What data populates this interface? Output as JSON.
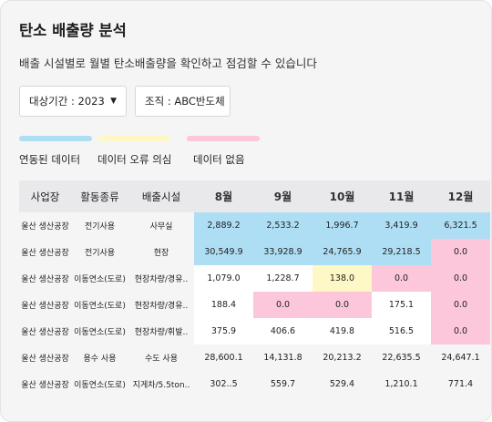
{
  "header": {
    "title": "탄소 배출량 분석",
    "subtitle": "배출 시설별로 월별 탄소배출량을 확인하고 점검할 수 있습니다"
  },
  "filters": {
    "period": "대상기간 : 2023",
    "org": "조직 : ABC반도체"
  },
  "legend": [
    {
      "label": "연동된 데이터",
      "color": "#aedef4"
    },
    {
      "label": "데이터 오류 의심",
      "color": "#fdf8c6"
    },
    {
      "label": "데이터 없음",
      "color": "#fcc7da"
    }
  ],
  "table": {
    "headers": [
      "사업장",
      "활동종류",
      "배출시설",
      "8월",
      "9월",
      "10월",
      "11월",
      "12월"
    ],
    "rows": [
      {
        "site": "울산 생산공장",
        "activity": "전기사용",
        "facility": "사무실",
        "values": [
          "2,889.2",
          "2,533.2",
          "1,996.7",
          "3,419.9",
          "6,321.5"
        ],
        "status": [
          "linked",
          "linked",
          "linked",
          "linked",
          "linked"
        ]
      },
      {
        "site": "울산 생산공장",
        "activity": "전기사용",
        "facility": "현장",
        "values": [
          "30,549.9",
          "33,928.9",
          "24,765.9",
          "29,218.5",
          "0.0"
        ],
        "status": [
          "linked",
          "linked",
          "linked",
          "linked",
          "missing"
        ]
      },
      {
        "site": "울산 생산공장",
        "activity": "이동연소(도로)",
        "facility": "현장차량/경유..",
        "values": [
          "1,079.0",
          "1,228.7",
          "138.0",
          "0.0",
          "0.0"
        ],
        "status": [
          "normal",
          "normal",
          "error",
          "missing",
          "missing"
        ]
      },
      {
        "site": "울산 생산공장",
        "activity": "이동연소(도로)",
        "facility": "현장차량/경유..",
        "values": [
          "188.4",
          "0.0",
          "0.0",
          "175.1",
          "0.0"
        ],
        "status": [
          "normal",
          "missing",
          "missing",
          "normal",
          "missing"
        ]
      },
      {
        "site": "울산 생산공장",
        "activity": "이동연소(도로)",
        "facility": "현장차량/휘발..",
        "values": [
          "375.9",
          "406.6",
          "419.8",
          "516.5",
          "0.0"
        ],
        "status": [
          "normal",
          "normal",
          "normal",
          "normal",
          "missing"
        ]
      },
      {
        "site": "울산 생산공장",
        "activity": "용수 사용",
        "facility": "수도 사용",
        "values": [
          "28,600.1",
          "14,131.8",
          "20,213.2",
          "22,635.5",
          "24,647.1"
        ],
        "status": [
          "plain",
          "plain",
          "plain",
          "plain",
          "plain"
        ]
      },
      {
        "site": "울산 생산공장",
        "activity": "이동연소(도로)",
        "facility": "지게차/5.5ton..",
        "values": [
          "302..5",
          "559.7",
          "529.4",
          "1,210.1",
          "771.4"
        ],
        "status": [
          "plain",
          "plain",
          "plain",
          "plain",
          "plain"
        ]
      }
    ]
  },
  "icons": {
    "dropdown": "caret-down-icon"
  }
}
